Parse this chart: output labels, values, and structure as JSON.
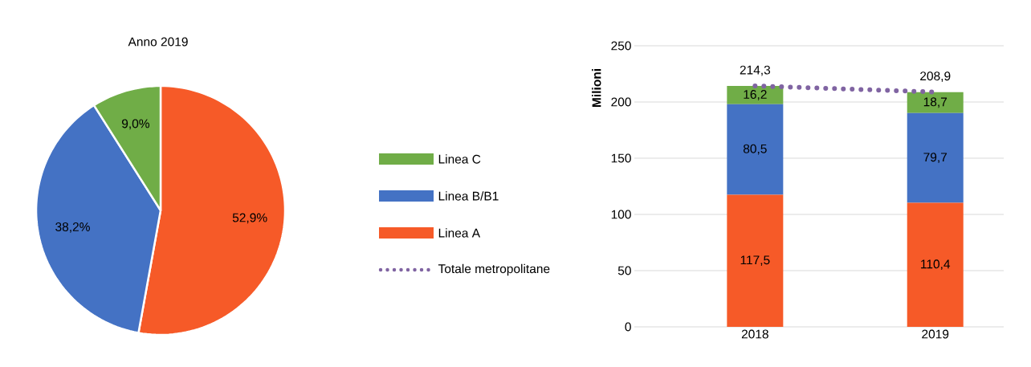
{
  "chart_data": [
    {
      "type": "pie",
      "title": "Anno 2019",
      "categories": [
        null,
        null,
        null
      ],
      "values": [
        52.9,
        38.2,
        9.0
      ],
      "colors": [
        "#f65a28",
        "#4472c4",
        "#70ad47"
      ],
      "value_labels": [
        "52,9%",
        "38,2%",
        "9,0%"
      ]
    },
    {
      "type": "bar",
      "stacked": true,
      "categories": [
        "2018",
        "2019"
      ],
      "ylabel": "Milioni",
      "ylim": [
        0,
        250
      ],
      "yticks": [
        0,
        50,
        100,
        150,
        200,
        250
      ],
      "grid": "y",
      "legend": "left",
      "series": [
        {
          "name": "Linea A",
          "color": "#f65a28",
          "values": [
            117.5,
            110.4
          ],
          "value_labels": [
            "117,5",
            "110,4"
          ]
        },
        {
          "name": "Linea B/B1",
          "color": "#4472c4",
          "values": [
            80.5,
            79.7
          ],
          "value_labels": [
            "80,5",
            "79,7"
          ]
        },
        {
          "name": "Linea C",
          "color": "#70ad47",
          "values": [
            16.2,
            18.7
          ],
          "value_labels": [
            "16,2",
            "18,7"
          ]
        },
        {
          "name": "Totale metropolitane",
          "type": "line",
          "line_style": "dotted",
          "marker": "none",
          "color": "#8064a2",
          "values": [
            214.3,
            208.9
          ],
          "value_labels": [
            "214,3",
            "208,9"
          ]
        }
      ]
    }
  ]
}
